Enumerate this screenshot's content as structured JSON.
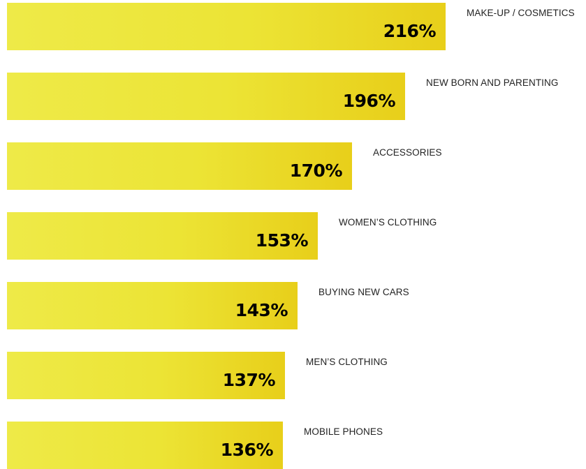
{
  "chart_data": {
    "type": "bar",
    "orientation": "horizontal",
    "categories": [
      "MAKE-UP / COSMETICS",
      "NEW BORN AND PARENTING",
      "ACCESSORIES",
      "WOMEN’S CLOTHING",
      "BUYING NEW CARS",
      "MEN’S CLOTHING",
      "MOBILE PHONES"
    ],
    "values": [
      216,
      196,
      170,
      153,
      143,
      137,
      136
    ],
    "value_labels": [
      "216%",
      "196%",
      "170%",
      "153%",
      "143%",
      "137%",
      "136%"
    ],
    "title": "",
    "xlabel": "",
    "ylabel": "",
    "xlim": [
      0,
      216
    ],
    "grid": false,
    "legend": "none",
    "bar_color": "#ece435"
  }
}
